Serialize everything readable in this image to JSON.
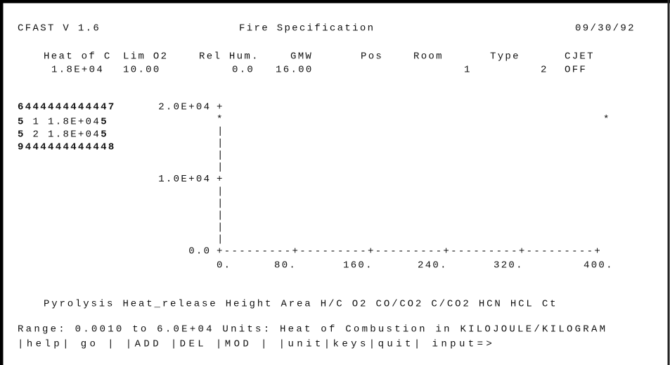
{
  "header": {
    "program": "CFAST V 1.6",
    "screen": "Fire Specification",
    "date": "09/30/92"
  },
  "fire_table": {
    "columns": [
      {
        "label": "Heat of C",
        "value": "1.8E+04"
      },
      {
        "label": "Lim O2",
        "value": "10.00"
      },
      {
        "label": "Rel Hum.",
        "value": "0.0"
      },
      {
        "label": "GMW",
        "value": "16.00"
      },
      {
        "label": "Pos"
      },
      {
        "label": "Room",
        "value": "1"
      },
      {
        "label": "Type",
        "value": "2"
      },
      {
        "label": "CJET",
        "value": "OFF"
      }
    ]
  },
  "fire_list": {
    "top": "6444444444447",
    "side": "5",
    "bottom": "9444444444448",
    "rows": [
      {
        "index": "1",
        "value": "1.8E+04"
      },
      {
        "index": "2",
        "value": "1.8E+04"
      }
    ]
  },
  "plot": {
    "yticks": [
      "2.0E+04",
      "1.0E+04",
      "0.0"
    ],
    "xticks": [
      "0.",
      "80.",
      "160.",
      "240.",
      "320.",
      "400."
    ],
    "marker": "*",
    "corner": "+",
    "vertical": "|",
    "horizontal": "+---------+---------+---------+---------+---------+"
  },
  "fields": "Pyrolysis Heat_release  Height  Area  H/C O2 CO/CO2 C/CO2 HCN HCL Ct",
  "range_line": "Range:    0.0010 to  6.0E+04   Units: Heat of Combustion in KILOJOULE/KILOGRAM",
  "menu": "|help| go |     |ADD |DEL |MOD |     |unit|keys|quit|   input=>"
}
